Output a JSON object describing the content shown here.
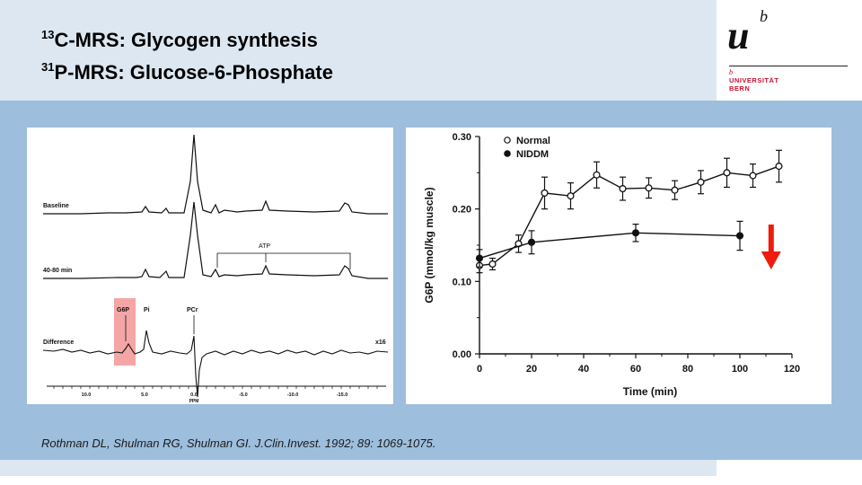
{
  "slide": {
    "title_line1_sup": "13",
    "title_line1": "C-MRS: Glycogen synthesis",
    "title_line2_sup": "31",
    "title_line2": "P-MRS: Glucose-6-Phosphate",
    "citation": "Rothman DL, Shulman RG, Shulman GI. J.Clin.Invest. 1992; 89: 1069-1075."
  },
  "logo": {
    "mark_u": "u",
    "mark_b": "b",
    "small_b": "b",
    "line1": "UNIVERSITÄT",
    "line2": "BERN",
    "brand_color": "#c8102e"
  },
  "spectrum": {
    "trace_labels": [
      "Baseline",
      "40-80 min",
      "Difference"
    ],
    "peak_labels": {
      "atp": "ATP",
      "g6p": "G6P",
      "pi": "Pi",
      "pcr": "PCr"
    },
    "scale_factor": "x16",
    "axis_ticks": [
      "10.0",
      "5.0",
      "0.0",
      "-5.0",
      "-10.0",
      "-15.0"
    ],
    "axis_unit": "PPM",
    "highlight_color": "#f4a6a6"
  },
  "chart_data": {
    "type": "line",
    "title": "",
    "xlabel": "Time (min)",
    "ylabel": "G6P (mmol/kg muscle)",
    "xlim": [
      0,
      120
    ],
    "ylim": [
      0,
      0.3
    ],
    "xticks": [
      0,
      20,
      40,
      60,
      80,
      100,
      120
    ],
    "xtick_labels": [
      "0",
      "20",
      "40",
      "60",
      "80",
      "100",
      "120"
    ],
    "yticks": [
      0,
      0.1,
      0.2,
      0.3
    ],
    "ytick_labels": [
      "0.00",
      "0.10",
      "0.20",
      "0.30"
    ],
    "legend_position": "top-left",
    "series": [
      {
        "name": "Normal",
        "marker": "open-circle",
        "x": [
          0,
          5,
          15,
          25,
          35,
          45,
          55,
          65,
          75,
          85,
          95,
          105,
          115
        ],
        "y": [
          0.122,
          0.124,
          0.152,
          0.222,
          0.218,
          0.247,
          0.228,
          0.229,
          0.226,
          0.237,
          0.25,
          0.246,
          0.259
        ],
        "err": [
          0.01,
          0.008,
          0.012,
          0.022,
          0.018,
          0.018,
          0.016,
          0.014,
          0.013,
          0.016,
          0.02,
          0.016,
          0.022
        ]
      },
      {
        "name": "NIDDM",
        "marker": "filled-circle",
        "x": [
          0,
          20,
          60,
          100
        ],
        "y": [
          0.132,
          0.154,
          0.167,
          0.163
        ],
        "err": [
          0.012,
          0.016,
          0.012,
          0.02
        ]
      }
    ],
    "arrow_color": "#ee1c0c"
  }
}
